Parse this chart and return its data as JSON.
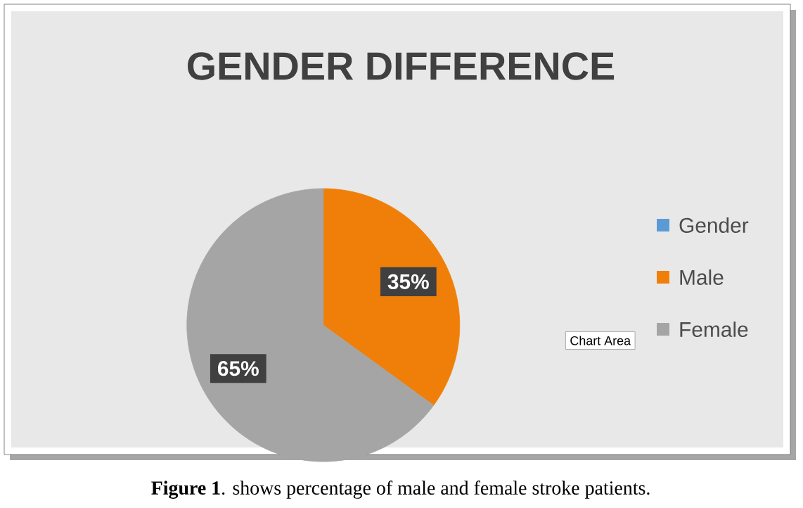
{
  "chart_data": {
    "type": "pie",
    "title": "GENDER DIFFERENCE",
    "categories": [
      "Gender",
      "Male",
      "Female"
    ],
    "values": [
      0,
      35,
      65
    ],
    "colors": [
      "#5b9bd5",
      "#f07f09",
      "#a5a5a5"
    ],
    "value_labels": [
      null,
      "35%",
      "65%"
    ],
    "legend": "right",
    "annotations": [
      "**Figure 1**. shows percentage of male and female stroke patients.",
      "Chart Area"
    ]
  }
}
